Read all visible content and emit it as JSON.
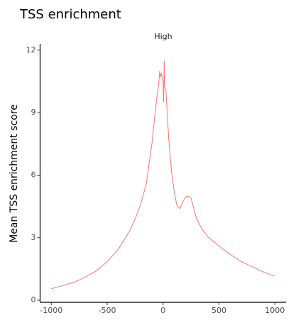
{
  "chart_data": {
    "type": "line",
    "title": "TSS enrichment",
    "panel_title": "High",
    "y_label": "Mean TSS enrichment score",
    "x": [
      -1000,
      -900,
      -800,
      -700,
      -600,
      -500,
      -400,
      -300,
      -250,
      -200,
      -150,
      -100,
      -75,
      -50,
      -40,
      -30,
      -25,
      -15,
      0,
      5,
      10,
      15,
      25,
      50,
      75,
      100,
      125,
      150,
      175,
      200,
      225,
      250,
      275,
      300,
      350,
      400,
      500,
      600,
      700,
      800,
      900,
      1000
    ],
    "series": [
      {
        "color": "#F8766D",
        "values": [
          0.55,
          0.7,
          0.85,
          1.1,
          1.4,
          1.85,
          2.45,
          3.3,
          3.9,
          4.6,
          5.6,
          7.5,
          8.8,
          10.0,
          10.3,
          11.0,
          10.7,
          10.9,
          10.5,
          9.5,
          11.5,
          10.2,
          10.1,
          7.8,
          6.2,
          5.2,
          4.5,
          4.4,
          4.7,
          4.95,
          5.0,
          4.9,
          4.4,
          3.9,
          3.4,
          3.05,
          2.6,
          2.2,
          1.85,
          1.6,
          1.35,
          1.15
        ]
      }
    ],
    "xlim": [
      -1100,
      1100
    ],
    "ylim": [
      -0.1,
      12.3
    ],
    "xticks": [
      -1000,
      -500,
      0,
      500,
      1000
    ],
    "yticks": [
      0,
      3,
      6,
      9,
      12
    ]
  }
}
